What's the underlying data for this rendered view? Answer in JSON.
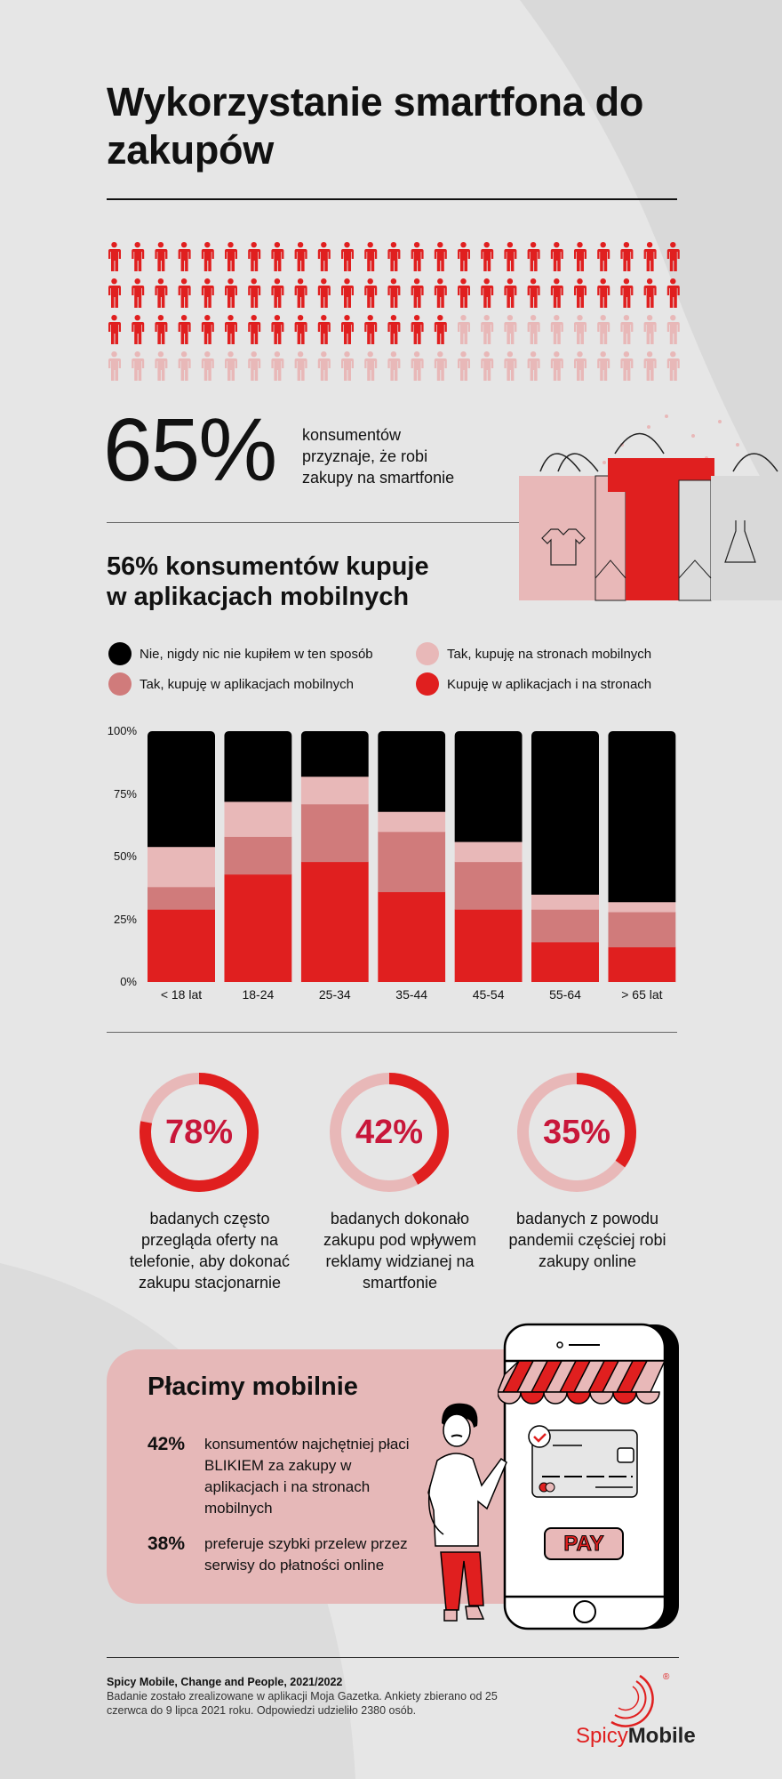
{
  "title": "Wykorzystanie smartfona do zakupów",
  "people_grid": {
    "total": 100,
    "highlighted": 65,
    "per_row": 25
  },
  "stat_main": {
    "value": "65%",
    "text_lines": [
      "konsumentów",
      "przyznaje, że robi",
      "zakupy na smartfonie"
    ]
  },
  "section2_title_lines": [
    "56% konsumentów kupuje",
    "w aplikacjach mobilnych"
  ],
  "chart_data": {
    "type": "bar",
    "stacked": true,
    "title": "56% konsumentów kupuje w aplikacjach mobilnych",
    "categories": [
      "< 18 lat",
      "18-24",
      "25-34",
      "35-44",
      "45-54",
      "55-64",
      "> 65 lat"
    ],
    "series": [
      {
        "name": "Kupuję w aplikacjach i na stronach",
        "color": "#e01f1f",
        "values": [
          29,
          43,
          48,
          36,
          29,
          16,
          14
        ]
      },
      {
        "name": "Tak, kupuję w aplikacjach mobilnych",
        "color": "#d07b7b",
        "values": [
          9,
          15,
          23,
          24,
          19,
          13,
          14
        ]
      },
      {
        "name": "Tak, kupuję na stronach mobilnych",
        "color": "#e8b8b8",
        "values": [
          16,
          14,
          11,
          8,
          8,
          6,
          4
        ]
      },
      {
        "name": "Nie, nigdy nic nie kupiłem w ten sposób",
        "color": "#000000",
        "values": [
          46,
          28,
          18,
          32,
          44,
          65,
          68
        ]
      }
    ],
    "yticks": [
      "0%",
      "25%",
      "50%",
      "75%",
      "100%"
    ],
    "ylim": [
      0,
      100
    ],
    "xlabel": "",
    "ylabel": "",
    "legend_position": "top"
  },
  "donuts": [
    {
      "value": 78,
      "label": "78%",
      "caption": "badanych często przegląda oferty na telefonie, aby dokonać zakupu stacjonarnie"
    },
    {
      "value": 42,
      "label": "42%",
      "caption": "badanych dokonało zakupu pod wpływem reklamy widzianej na smartfonie"
    },
    {
      "value": 35,
      "label": "35%",
      "caption": "badanych z powodu pandemii częściej robi zakupy online"
    }
  ],
  "payments": {
    "title": "Płacimy mobilnie",
    "items": [
      {
        "pct": "42%",
        "text": "konsumentów najchętniej płaci BLIKIEM za zakupy w aplikacjach i na stronach mobilnych"
      },
      {
        "pct": "38%",
        "text": "preferuje szybki przelew przez serwisy do płatności online"
      }
    ],
    "pay_button": "PAY"
  },
  "footer": {
    "source": "Spicy Mobile, Change and People, 2021/2022",
    "note": "Badanie zostało zrealizowane w aplikacji Moja Gazetka. Ankiety zbierano od 25 czerwca do 9 lipca 2021 roku. Odpowiedzi udzieliło 2380 osób."
  },
  "logo": {
    "part1": "Spicy",
    "part2": "Mobile",
    "mark": "®"
  },
  "colors": {
    "red": "#e01f1f",
    "pink": "#e8b8b8",
    "mid": "#d07b7b",
    "pct": "#c8173a",
    "bg": "#e6e6e6"
  }
}
